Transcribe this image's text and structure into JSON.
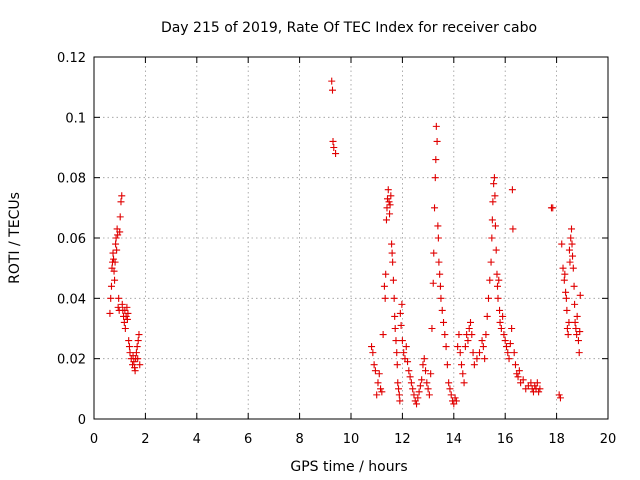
{
  "chart_data": {
    "type": "scatter",
    "title": "Day 215 of 2019, Rate Of TEC Index for receiver cabo",
    "xlabel": "GPS time / hours",
    "ylabel": "ROTI / TECUs",
    "xlim": [
      0,
      20
    ],
    "ylim": [
      0,
      0.12
    ],
    "xticks": [
      0,
      2,
      4,
      6,
      8,
      10,
      12,
      14,
      16,
      18,
      20
    ],
    "xtick_labels": [
      "0",
      "2",
      "4",
      "6",
      "8",
      "10",
      "12",
      "14",
      "16",
      "18",
      "20"
    ],
    "yticks": [
      0,
      0.02,
      0.04,
      0.06,
      0.08,
      0.1,
      0.12
    ],
    "ytick_labels": [
      "0",
      "0.02",
      "0.04",
      "0.06",
      "0.08",
      "0.1",
      "0.12"
    ],
    "grid": true,
    "marker": "+",
    "color": "#e00000",
    "series": [
      {
        "name": "ROTI",
        "points": [
          [
            0.62,
            0.035
          ],
          [
            0.65,
            0.04
          ],
          [
            0.68,
            0.044
          ],
          [
            0.7,
            0.05
          ],
          [
            0.72,
            0.052
          ],
          [
            0.74,
            0.055
          ],
          [
            0.76,
            0.053
          ],
          [
            0.78,
            0.049
          ],
          [
            0.8,
            0.046
          ],
          [
            0.82,
            0.052
          ],
          [
            0.84,
            0.058
          ],
          [
            0.86,
            0.06
          ],
          [
            0.88,
            0.056
          ],
          [
            0.9,
            0.063
          ],
          [
            0.92,
            0.061
          ],
          [
            0.94,
            0.037
          ],
          [
            0.96,
            0.04
          ],
          [
            0.98,
            0.036
          ],
          [
            1.0,
            0.062
          ],
          [
            1.02,
            0.067
          ],
          [
            1.05,
            0.072
          ],
          [
            1.08,
            0.074
          ],
          [
            1.1,
            0.038
          ],
          [
            1.12,
            0.036
          ],
          [
            1.15,
            0.034
          ],
          [
            1.18,
            0.032
          ],
          [
            1.2,
            0.036
          ],
          [
            1.22,
            0.03
          ],
          [
            1.25,
            0.034
          ],
          [
            1.28,
            0.037
          ],
          [
            1.3,
            0.033
          ],
          [
            1.32,
            0.035
          ],
          [
            1.35,
            0.026
          ],
          [
            1.38,
            0.024
          ],
          [
            1.4,
            0.022
          ],
          [
            1.45,
            0.02
          ],
          [
            1.5,
            0.018
          ],
          [
            1.52,
            0.021
          ],
          [
            1.55,
            0.019
          ],
          [
            1.58,
            0.017
          ],
          [
            1.6,
            0.016
          ],
          [
            1.62,
            0.02
          ],
          [
            1.65,
            0.022
          ],
          [
            1.68,
            0.024
          ],
          [
            1.7,
            0.02
          ],
          [
            1.72,
            0.026
          ],
          [
            1.75,
            0.028
          ],
          [
            1.78,
            0.018
          ],
          [
            9.25,
            0.112
          ],
          [
            9.28,
            0.109
          ],
          [
            9.3,
            0.092
          ],
          [
            9.33,
            0.09
          ],
          [
            9.4,
            0.088
          ],
          [
            10.8,
            0.024
          ],
          [
            10.85,
            0.022
          ],
          [
            10.9,
            0.018
          ],
          [
            10.95,
            0.016
          ],
          [
            11.0,
            0.008
          ],
          [
            11.05,
            0.012
          ],
          [
            11.1,
            0.015
          ],
          [
            11.15,
            0.01
          ],
          [
            11.2,
            0.009
          ],
          [
            11.25,
            0.028
          ],
          [
            11.3,
            0.044
          ],
          [
            11.33,
            0.04
          ],
          [
            11.35,
            0.048
          ],
          [
            11.38,
            0.066
          ],
          [
            11.4,
            0.07
          ],
          [
            11.42,
            0.073
          ],
          [
            11.45,
            0.076
          ],
          [
            11.48,
            0.072
          ],
          [
            11.5,
            0.068
          ],
          [
            11.52,
            0.071
          ],
          [
            11.55,
            0.074
          ],
          [
            11.58,
            0.058
          ],
          [
            11.6,
            0.055
          ],
          [
            11.62,
            0.052
          ],
          [
            11.65,
            0.046
          ],
          [
            11.68,
            0.04
          ],
          [
            11.7,
            0.034
          ],
          [
            11.72,
            0.03
          ],
          [
            11.75,
            0.026
          ],
          [
            11.78,
            0.022
          ],
          [
            11.8,
            0.018
          ],
          [
            11.82,
            0.012
          ],
          [
            11.85,
            0.01
          ],
          [
            11.88,
            0.008
          ],
          [
            11.9,
            0.006
          ],
          [
            11.92,
            0.035
          ],
          [
            11.95,
            0.031
          ],
          [
            11.98,
            0.038
          ],
          [
            12.0,
            0.026
          ],
          [
            12.05,
            0.022
          ],
          [
            12.1,
            0.02
          ],
          [
            12.15,
            0.024
          ],
          [
            12.2,
            0.019
          ],
          [
            12.25,
            0.016
          ],
          [
            12.3,
            0.014
          ],
          [
            12.35,
            0.012
          ],
          [
            12.4,
            0.01
          ],
          [
            12.45,
            0.008
          ],
          [
            12.5,
            0.006
          ],
          [
            12.55,
            0.005
          ],
          [
            12.6,
            0.007
          ],
          [
            12.65,
            0.009
          ],
          [
            12.7,
            0.011
          ],
          [
            12.75,
            0.013
          ],
          [
            12.8,
            0.018
          ],
          [
            12.85,
            0.02
          ],
          [
            12.9,
            0.016
          ],
          [
            12.95,
            0.012
          ],
          [
            13.0,
            0.01
          ],
          [
            13.05,
            0.008
          ],
          [
            13.1,
            0.015
          ],
          [
            13.15,
            0.03
          ],
          [
            13.2,
            0.045
          ],
          [
            13.22,
            0.055
          ],
          [
            13.25,
            0.07
          ],
          [
            13.28,
            0.08
          ],
          [
            13.3,
            0.086
          ],
          [
            13.32,
            0.097
          ],
          [
            13.35,
            0.092
          ],
          [
            13.38,
            0.064
          ],
          [
            13.4,
            0.06
          ],
          [
            13.42,
            0.052
          ],
          [
            13.45,
            0.048
          ],
          [
            13.48,
            0.044
          ],
          [
            13.5,
            0.04
          ],
          [
            13.55,
            0.036
          ],
          [
            13.6,
            0.032
          ],
          [
            13.65,
            0.028
          ],
          [
            13.7,
            0.024
          ],
          [
            13.75,
            0.018
          ],
          [
            13.8,
            0.012
          ],
          [
            13.85,
            0.01
          ],
          [
            13.9,
            0.008
          ],
          [
            13.95,
            0.006
          ],
          [
            14.0,
            0.005
          ],
          [
            14.05,
            0.007
          ],
          [
            14.1,
            0.006
          ],
          [
            14.15,
            0.024
          ],
          [
            14.2,
            0.028
          ],
          [
            14.25,
            0.022
          ],
          [
            14.3,
            0.018
          ],
          [
            14.35,
            0.015
          ],
          [
            14.4,
            0.012
          ],
          [
            14.45,
            0.024
          ],
          [
            14.5,
            0.028
          ],
          [
            14.55,
            0.026
          ],
          [
            14.6,
            0.03
          ],
          [
            14.65,
            0.032
          ],
          [
            14.7,
            0.028
          ],
          [
            14.75,
            0.022
          ],
          [
            14.8,
            0.018
          ],
          [
            14.9,
            0.02
          ],
          [
            15.0,
            0.022
          ],
          [
            15.1,
            0.026
          ],
          [
            15.15,
            0.024
          ],
          [
            15.2,
            0.02
          ],
          [
            15.25,
            0.028
          ],
          [
            15.3,
            0.034
          ],
          [
            15.35,
            0.04
          ],
          [
            15.4,
            0.046
          ],
          [
            15.45,
            0.052
          ],
          [
            15.48,
            0.06
          ],
          [
            15.5,
            0.066
          ],
          [
            15.52,
            0.072
          ],
          [
            15.55,
            0.078
          ],
          [
            15.58,
            0.08
          ],
          [
            15.6,
            0.074
          ],
          [
            15.62,
            0.064
          ],
          [
            15.65,
            0.056
          ],
          [
            15.68,
            0.048
          ],
          [
            15.7,
            0.044
          ],
          [
            15.72,
            0.04
          ],
          [
            15.75,
            0.046
          ],
          [
            15.78,
            0.036
          ],
          [
            15.8,
            0.032
          ],
          [
            15.85,
            0.03
          ],
          [
            15.9,
            0.034
          ],
          [
            15.95,
            0.028
          ],
          [
            16.0,
            0.026
          ],
          [
            16.05,
            0.024
          ],
          [
            16.1,
            0.022
          ],
          [
            16.15,
            0.02
          ],
          [
            16.2,
            0.025
          ],
          [
            16.25,
            0.03
          ],
          [
            16.28,
            0.076
          ],
          [
            16.3,
            0.063
          ],
          [
            16.35,
            0.022
          ],
          [
            16.4,
            0.018
          ],
          [
            16.45,
            0.015
          ],
          [
            16.5,
            0.014
          ],
          [
            16.55,
            0.016
          ],
          [
            16.6,
            0.012
          ],
          [
            16.7,
            0.013
          ],
          [
            16.8,
            0.01
          ],
          [
            16.9,
            0.011
          ],
          [
            17.0,
            0.012
          ],
          [
            17.05,
            0.01
          ],
          [
            17.1,
            0.009
          ],
          [
            17.15,
            0.011
          ],
          [
            17.2,
            0.01
          ],
          [
            17.25,
            0.012
          ],
          [
            17.3,
            0.009
          ],
          [
            17.35,
            0.01
          ],
          [
            17.8,
            0.07
          ],
          [
            17.85,
            0.07
          ],
          [
            18.1,
            0.008
          ],
          [
            18.15,
            0.007
          ],
          [
            18.2,
            0.058
          ],
          [
            18.25,
            0.05
          ],
          [
            18.3,
            0.046
          ],
          [
            18.32,
            0.048
          ],
          [
            18.35,
            0.042
          ],
          [
            18.38,
            0.04
          ],
          [
            18.4,
            0.036
          ],
          [
            18.42,
            0.03
          ],
          [
            18.45,
            0.028
          ],
          [
            18.48,
            0.032
          ],
          [
            18.5,
            0.056
          ],
          [
            18.52,
            0.052
          ],
          [
            18.55,
            0.06
          ],
          [
            18.58,
            0.063
          ],
          [
            18.6,
            0.058
          ],
          [
            18.62,
            0.054
          ],
          [
            18.65,
            0.05
          ],
          [
            18.68,
            0.044
          ],
          [
            18.7,
            0.038
          ],
          [
            18.72,
            0.032
          ],
          [
            18.75,
            0.03
          ],
          [
            18.78,
            0.028
          ],
          [
            18.8,
            0.034
          ],
          [
            18.85,
            0.026
          ],
          [
            18.88,
            0.022
          ],
          [
            18.9,
            0.029
          ],
          [
            18.92,
            0.041
          ]
        ]
      }
    ]
  }
}
